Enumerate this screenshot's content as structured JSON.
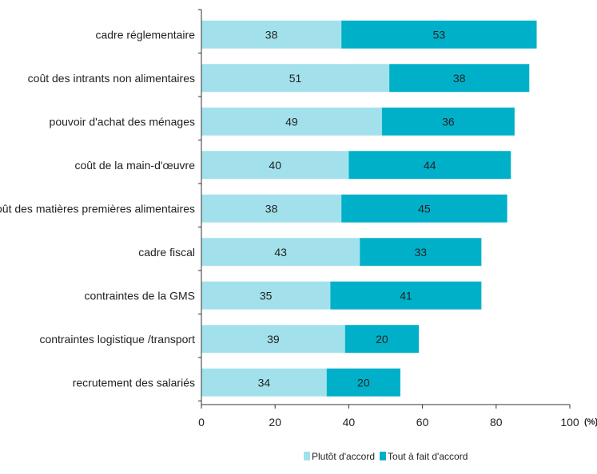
{
  "chart_data": {
    "type": "bar",
    "orientation": "horizontal",
    "stacked": true,
    "categories": [
      "cadre réglementaire",
      "coût des intrants non alimentaires",
      "pouvoir d'achat des ménages",
      "coût de la main-d'œuvre",
      "coût des matières premières alimentaires",
      "cadre fiscal",
      "contraintes de la GMS",
      "contraintes logistique /transport",
      "recrutement des salariés"
    ],
    "series": [
      {
        "name": "Plutôt d'accord",
        "color": "#a2e1ec",
        "values": [
          38,
          51,
          49,
          40,
          38,
          43,
          35,
          39,
          34
        ]
      },
      {
        "name": "Tout à fait d'accord",
        "color": "#00b0c9",
        "values": [
          53,
          38,
          36,
          44,
          45,
          33,
          41,
          20,
          20
        ]
      }
    ],
    "xlim": [
      0,
      100
    ],
    "xticks": [
      0,
      20,
      40,
      60,
      80,
      100
    ],
    "x_unit": "(%)",
    "grid": false,
    "legend_position": "bottom-right"
  }
}
